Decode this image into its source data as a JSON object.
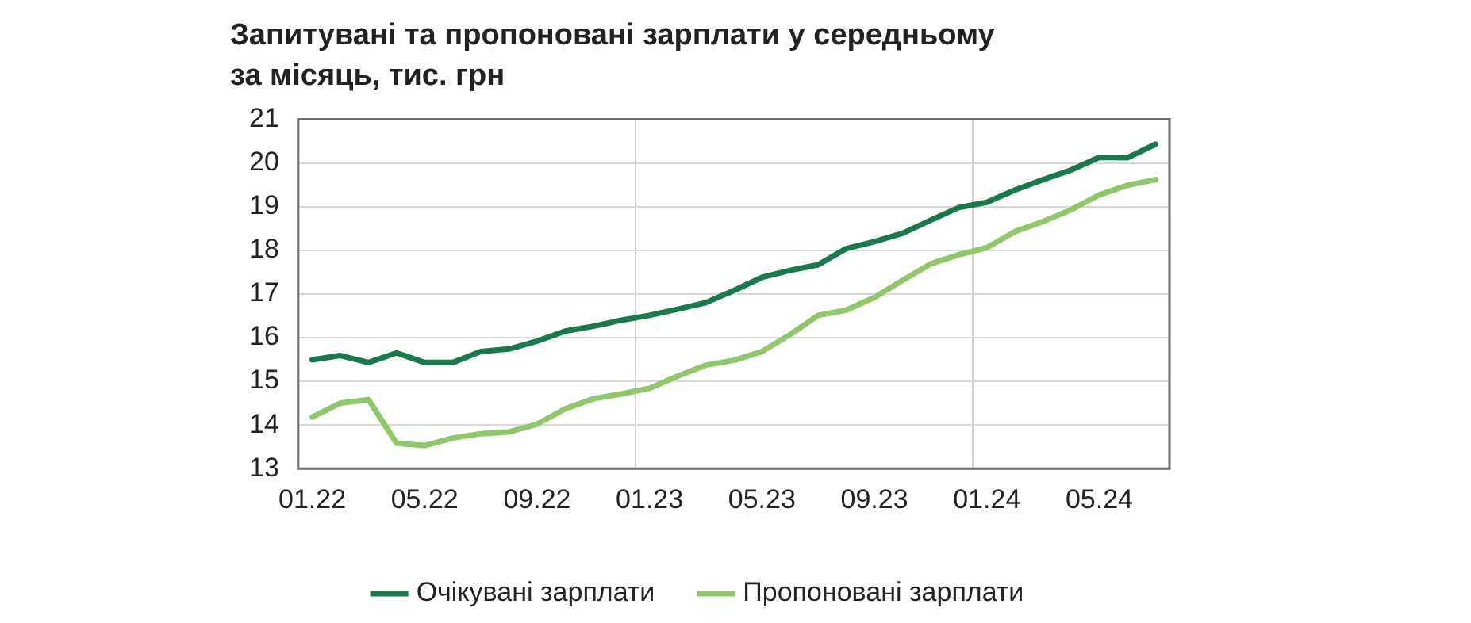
{
  "chart_data": {
    "type": "line",
    "title": "Запитувані та пропоновані зарплати у середньому\nза місяць, тис. грн",
    "categories": [
      "01.22",
      null,
      null,
      null,
      "05.22",
      null,
      null,
      null,
      "09.22",
      null,
      null,
      null,
      "01.23",
      null,
      null,
      null,
      "05.23",
      null,
      null,
      null,
      "09.23",
      null,
      null,
      null,
      "01.24",
      null,
      null,
      null,
      "05.24",
      null,
      null
    ],
    "series": [
      {
        "name": "Очікувані зарплати",
        "color": "#177a4a",
        "values": [
          15.49,
          15.59,
          15.43,
          15.65,
          15.43,
          15.43,
          15.68,
          15.74,
          15.92,
          16.15,
          16.26,
          16.4,
          16.51,
          16.65,
          16.8,
          17.08,
          17.38,
          17.54,
          17.67,
          18.04,
          18.2,
          18.39,
          18.69,
          18.98,
          19.1,
          19.38,
          19.62,
          19.84,
          20.13,
          20.12,
          20.43
        ]
      },
      {
        "name": "Пропоновані зарплати",
        "color": "#8fc866",
        "values": [
          14.18,
          14.5,
          14.58,
          13.58,
          13.53,
          13.7,
          13.8,
          13.84,
          14.02,
          14.37,
          14.6,
          14.71,
          14.84,
          15.12,
          15.37,
          15.48,
          15.68,
          16.07,
          16.51,
          16.63,
          16.92,
          17.31,
          17.69,
          17.9,
          18.06,
          18.43,
          18.66,
          18.93,
          19.27,
          19.49,
          19.62
        ]
      }
    ],
    "ylim": [
      13,
      21
    ],
    "yticks": [
      13,
      14,
      15,
      16,
      17,
      18,
      19,
      20,
      21
    ],
    "grid": true,
    "legend": "bottom",
    "marker": "none",
    "line_style": "solid"
  }
}
